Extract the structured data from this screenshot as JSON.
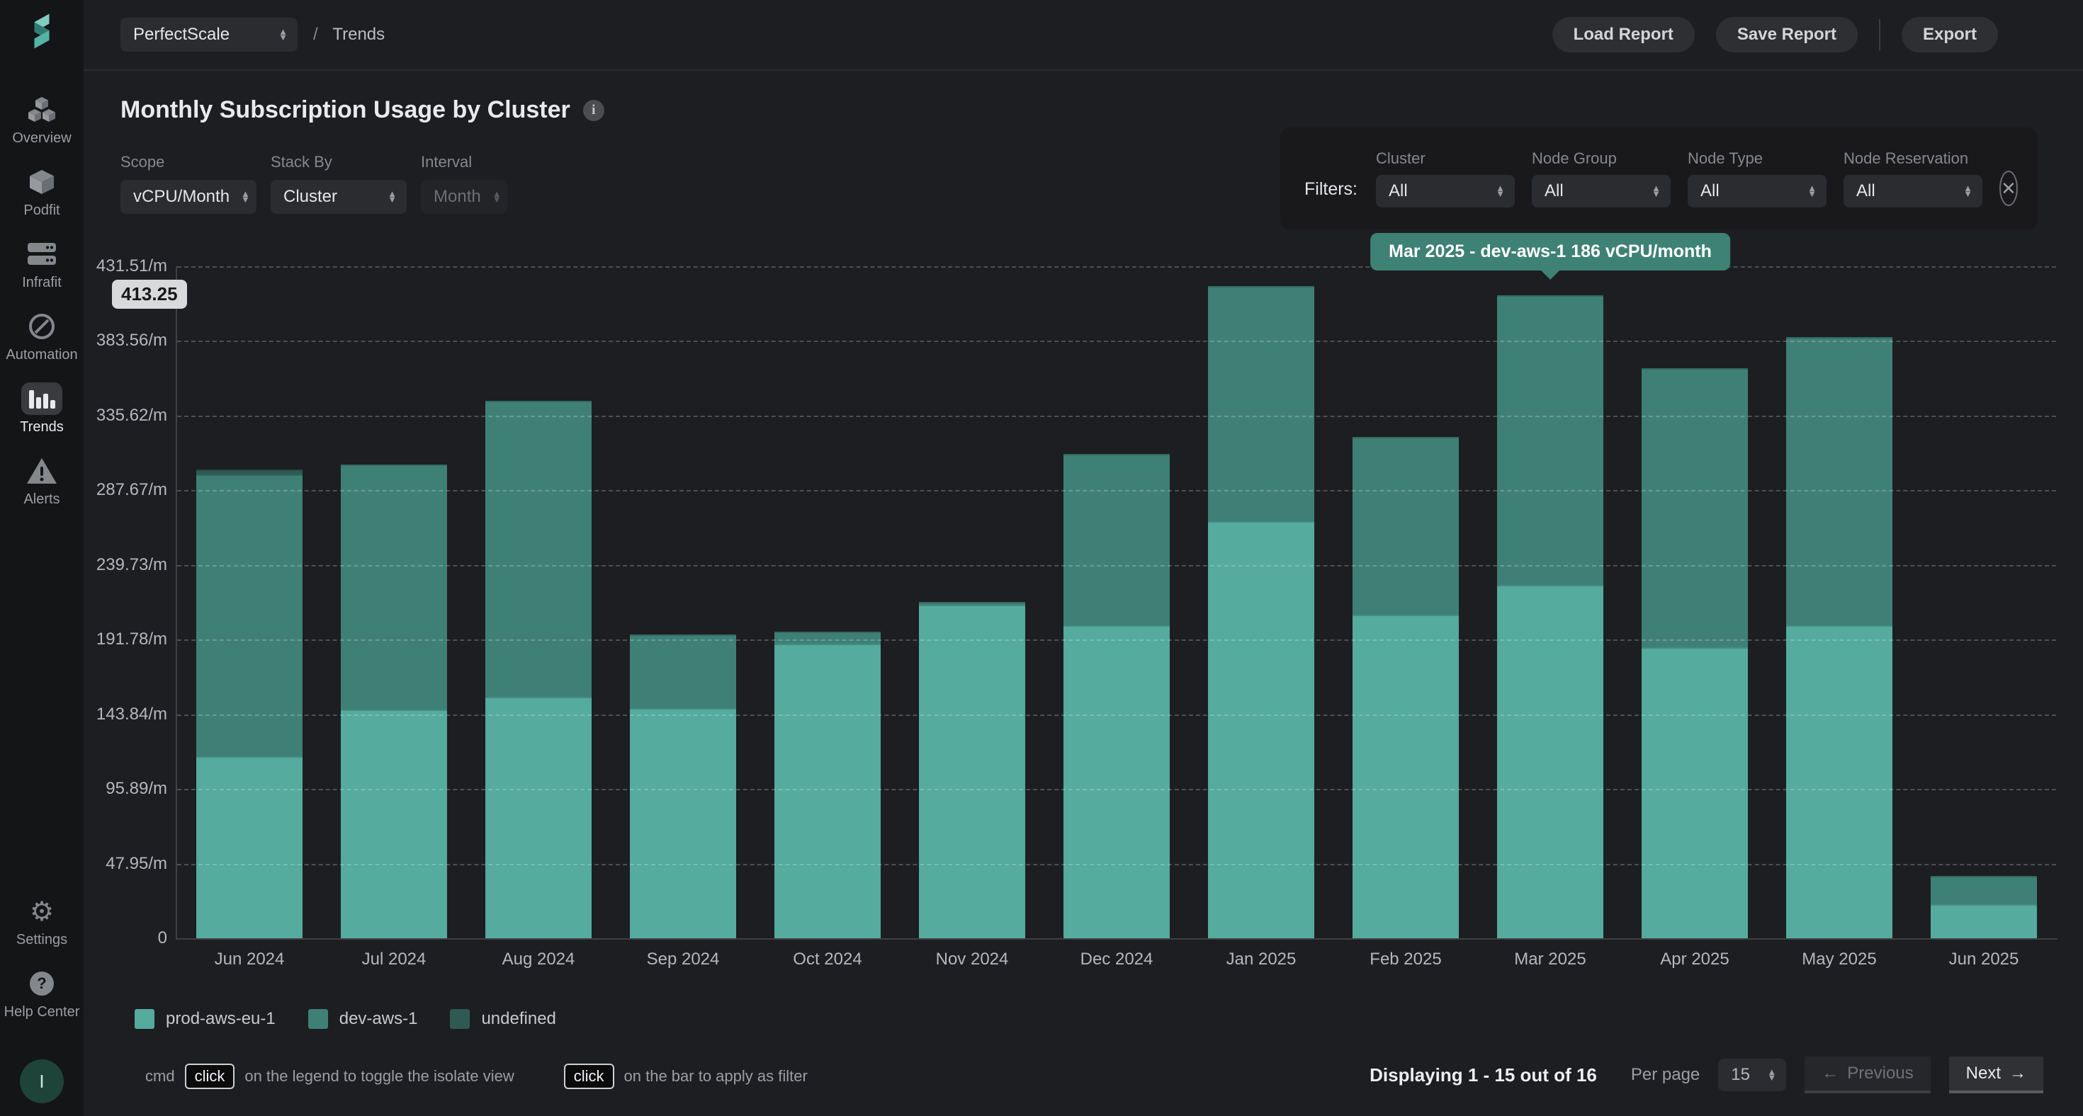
{
  "topbar": {
    "project_select_value": "PerfectScale",
    "breadcrumb_separator": "/",
    "breadcrumb_page": "Trends",
    "load_report_label": "Load Report",
    "save_report_label": "Save Report",
    "export_label": "Export"
  },
  "sidebar": {
    "items": [
      {
        "label": "Overview",
        "icon": "cubes-icon",
        "active": false
      },
      {
        "label": "Podfit",
        "icon": "cube-icon",
        "active": false
      },
      {
        "label": "Infrafit",
        "icon": "servers-icon",
        "active": false
      },
      {
        "label": "Automation",
        "icon": "no-entry-icon",
        "active": false
      },
      {
        "label": "Trends",
        "icon": "bar-chart-icon",
        "active": true
      },
      {
        "label": "Alerts",
        "icon": "warning-icon",
        "active": false
      }
    ],
    "settings_label": "Settings",
    "help_label": "Help Center",
    "settings_glyph": "⚙",
    "avatar_letter": "I"
  },
  "panel": {
    "title": "Monthly Subscription Usage by Cluster",
    "info_glyph": "i",
    "controls": [
      {
        "label": "Scope",
        "value": "vCPU/Month",
        "disabled": false,
        "width": 192
      },
      {
        "label": "Stack By",
        "value": "Cluster",
        "disabled": false,
        "width": 192
      },
      {
        "label": "Interval",
        "value": "Month",
        "disabled": true,
        "width": 122
      }
    ],
    "filters": {
      "label": "Filters:",
      "fields": [
        {
          "label": "Cluster",
          "value": "All"
        },
        {
          "label": "Node Group",
          "value": "All"
        },
        {
          "label": "Node Type",
          "value": "All"
        },
        {
          "label": "Node Reservation",
          "value": "All"
        }
      ],
      "close_glyph": "✕"
    }
  },
  "chart_data": {
    "type": "bar",
    "stacked": true,
    "title": "Monthly Subscription Usage by Cluster",
    "unit": "vCPU/month",
    "categories": [
      "Jun 2024",
      "Jul 2024",
      "Aug 2024",
      "Sep 2024",
      "Oct 2024",
      "Nov 2024",
      "Dec 2024",
      "Jan 2025",
      "Feb 2025",
      "Mar 2025",
      "Apr 2025",
      "May 2025",
      "Jun 2025"
    ],
    "series": [
      {
        "name": "prod-aws-eu-1",
        "color": "#54ab9e",
        "values": [
          117,
          147,
          155,
          148,
          189,
          214,
          201,
          268,
          208,
          227,
          187,
          201,
          22
        ]
      },
      {
        "name": "dev-aws-1",
        "color": "#3f8076",
        "values": [
          181,
          157,
          190,
          47,
          8,
          2,
          110,
          151,
          114,
          186,
          179,
          185,
          18
        ]
      },
      {
        "name": "undefined",
        "color": "#2f5a53",
        "values": [
          3,
          0,
          0,
          0,
          0,
          0,
          0,
          0,
          0,
          0,
          0,
          0,
          0
        ]
      }
    ],
    "y_max": 431.51,
    "y_ticks": [
      {
        "value": 0,
        "label": "0"
      },
      {
        "value": 47.95,
        "label": "47.95/m"
      },
      {
        "value": 95.89,
        "label": "95.89/m"
      },
      {
        "value": 143.84,
        "label": "143.84/m"
      },
      {
        "value": 191.78,
        "label": "191.78/m"
      },
      {
        "value": 239.73,
        "label": "239.73/m"
      },
      {
        "value": 287.67,
        "label": "287.67/m"
      },
      {
        "value": 335.62,
        "label": "335.62/m"
      },
      {
        "value": 383.56,
        "label": "383.56/m"
      },
      {
        "value": 431.51,
        "label": "431.51/m"
      }
    ],
    "marker": {
      "value": 413.25,
      "label": "413.25"
    },
    "grid": "dashed-horizontal",
    "legend_position": "bottom-left",
    "tooltip": {
      "category_index": 9,
      "series": "dev-aws-1",
      "text": "Mar 2025 - dev-aws-1 186 vCPU/month"
    }
  },
  "footer": {
    "hint_prefix": "cmd",
    "kbd_label": "click",
    "hint1": "on the legend to toggle the isolate view",
    "hint2": "on the bar to apply as filter",
    "displaying": "Displaying 1 - 15 out of 16",
    "per_page_label": "Per page",
    "per_page_value": "15",
    "previous_arrow": "←",
    "previous_label": "Previous",
    "next_label": "Next",
    "next_arrow": "→"
  }
}
